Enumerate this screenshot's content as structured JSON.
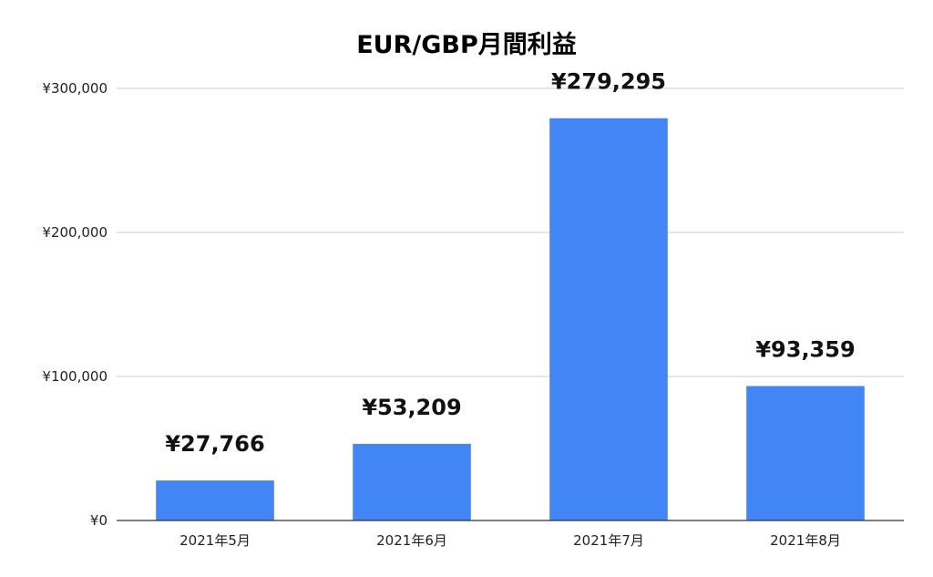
{
  "chart_data": {
    "type": "bar",
    "title": "EUR/GBP月間利益",
    "xlabel": "",
    "ylabel": "",
    "categories": [
      "2021年5月",
      "2021年6月",
      "2021年7月",
      "2021年8月"
    ],
    "values": [
      27766,
      53209,
      279295,
      93359
    ],
    "data_labels": [
      "¥27,766",
      "¥53,209",
      "¥279,295",
      "¥93,359"
    ],
    "y_ticks": [
      0,
      100000,
      200000,
      300000
    ],
    "y_tick_labels": [
      "¥0",
      "¥100,000",
      "¥200,000",
      "¥300,000"
    ],
    "ylim": [
      0,
      300000
    ],
    "grid": true,
    "legend": "none",
    "bar_color": "#4285f4"
  }
}
